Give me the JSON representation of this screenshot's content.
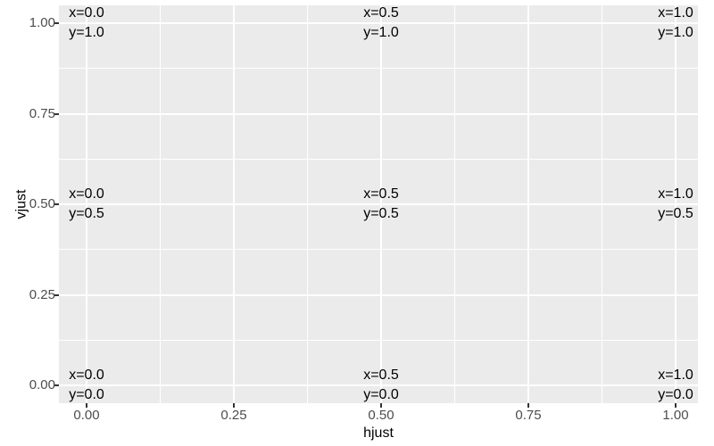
{
  "figure": {
    "background": "#FFFFFF",
    "panel_background": "#EBEBEB",
    "grid_color": "#FFFFFF",
    "tick_mark_color": "#333333",
    "tick_label_color": "#4D4D4D",
    "annotation_color": "#000000"
  },
  "chart_data": {
    "type": "scatter",
    "title": "",
    "xlabel": "hjust",
    "ylabel": "vjust",
    "xlim": [
      -0.05,
      1.05
    ],
    "ylim": [
      -0.05,
      1.05
    ],
    "grid": "major and minor gridlines on, white on grey panel",
    "legend": "none",
    "x_ticks": {
      "values": [
        0,
        0.25,
        0.5,
        0.75,
        1
      ],
      "labels": [
        "0.00",
        "0.25",
        "0.50",
        "0.75",
        "1.00"
      ]
    },
    "y_ticks": {
      "values": [
        0,
        0.25,
        0.5,
        0.75,
        1
      ],
      "labels": [
        "0.00",
        "0.25",
        "0.50",
        "0.75",
        "1.00"
      ]
    },
    "x_minor": [
      0.125,
      0.375,
      0.625,
      0.875
    ],
    "y_minor": [
      0.125,
      0.375,
      0.625,
      0.875
    ],
    "annotations": [
      {
        "x": 0.0,
        "y": 1.0,
        "line1": "x=0.0",
        "line2": "y=1.0"
      },
      {
        "x": 0.5,
        "y": 1.0,
        "line1": "x=0.5",
        "line2": "y=1.0"
      },
      {
        "x": 1.0,
        "y": 1.0,
        "line1": "x=1.0",
        "line2": "y=1.0"
      },
      {
        "x": 0.0,
        "y": 0.5,
        "line1": "x=0.0",
        "line2": "y=0.5"
      },
      {
        "x": 0.5,
        "y": 0.5,
        "line1": "x=0.5",
        "line2": "y=0.5"
      },
      {
        "x": 1.0,
        "y": 0.5,
        "line1": "x=1.0",
        "line2": "y=0.5"
      },
      {
        "x": 0.0,
        "y": 0.0,
        "line1": "x=0.0",
        "line2": "y=0.0"
      },
      {
        "x": 0.5,
        "y": 0.0,
        "line1": "x=0.5",
        "line2": "y=0.0"
      },
      {
        "x": 1.0,
        "y": 0.0,
        "line1": "x=1.0",
        "line2": "y=0.0"
      }
    ]
  }
}
